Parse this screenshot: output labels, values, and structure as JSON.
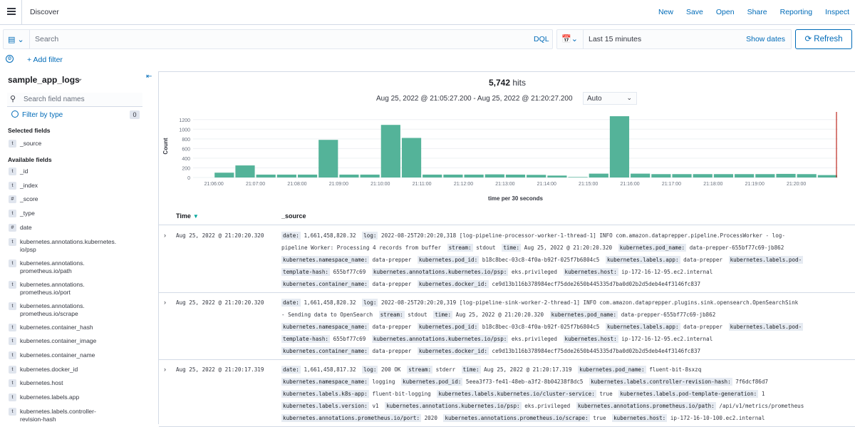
{
  "topbar": {
    "title": "Discover",
    "links": [
      "New",
      "Save",
      "Open",
      "Share",
      "Reporting",
      "Inspect"
    ]
  },
  "querybar": {
    "search_placeholder": "Search",
    "language": "DQL",
    "time_range": "Last 15 minutes",
    "show_dates": "Show dates",
    "refresh": "Refresh"
  },
  "filterbar": {
    "add_filter": "+ Add filter"
  },
  "sidebar": {
    "index_pattern": "sample_app_logs",
    "search_placeholder": "Search field names",
    "filter_by_type": "Filter by type",
    "filter_count": "0",
    "selected_title": "Selected fields",
    "selected_fields": [
      {
        "type": "t",
        "name": "_source"
      }
    ],
    "available_title": "Available fields",
    "available_fields": [
      {
        "type": "t",
        "name": "_id"
      },
      {
        "type": "t",
        "name": "_index"
      },
      {
        "type": "#",
        "name": "_score"
      },
      {
        "type": "t",
        "name": "_type"
      },
      {
        "type": "#",
        "name": "date"
      },
      {
        "type": "t",
        "name": "kubernetes.annotations.kubernetes.",
        "name2": "io/psp"
      },
      {
        "type": "t",
        "name": "kubernetes.annotations.",
        "name2": "prometheus.io/path"
      },
      {
        "type": "t",
        "name": "kubernetes.annotations.",
        "name2": "prometheus.io/port"
      },
      {
        "type": "t",
        "name": "kubernetes.annotations.",
        "name2": "prometheus.io/scrape"
      },
      {
        "type": "t",
        "name": "kubernetes.container_hash"
      },
      {
        "type": "t",
        "name": "kubernetes.container_image"
      },
      {
        "type": "t",
        "name": "kubernetes.container_name"
      },
      {
        "type": "t",
        "name": "kubernetes.docker_id"
      },
      {
        "type": "t",
        "name": "kubernetes.host"
      },
      {
        "type": "t",
        "name": "kubernetes.labels.app"
      },
      {
        "type": "t",
        "name": "kubernetes.labels.controller-",
        "name2": "revision-hash"
      }
    ]
  },
  "main": {
    "hits_count": "5,742",
    "hits_label": "hits",
    "range_text": "Aug 25, 2022 @ 21:05:27.200 - Aug 25, 2022 @ 21:20:27.200",
    "interval": "Auto",
    "time_header": "Time",
    "source_header": "_source"
  },
  "chart_data": {
    "type": "bar",
    "xlabel": "time per 30 seconds",
    "ylabel": "Count",
    "ylim": [
      0,
      1300
    ],
    "yticks": [
      0,
      200,
      400,
      600,
      800,
      1000,
      1200
    ],
    "xticks": [
      "21:06:00",
      "21:07:00",
      "21:08:00",
      "21:09:00",
      "21:10:00",
      "21:11:00",
      "21:12:00",
      "21:13:00",
      "21:14:00",
      "21:15:00",
      "21:16:00",
      "21:17:00",
      "21:18:00",
      "21:19:00",
      "21:20:00"
    ],
    "bar_start_index": 1,
    "values": [
      100,
      250,
      60,
      60,
      60,
      780,
      60,
      60,
      1090,
      820,
      60,
      60,
      60,
      65,
      60,
      55,
      40,
      10,
      80,
      1270,
      80,
      70,
      70,
      70,
      70,
      70,
      70,
      75,
      70,
      50
    ],
    "bar_color": "#54b399",
    "now_marker_color": "#bd271e",
    "grid": true
  },
  "documents": [
    {
      "time": "Aug 25, 2022 @ 21:20:20.320",
      "lines": [
        [
          [
            "date:",
            "1,661,458,820.32"
          ],
          [
            "log:",
            "2022-08-25T20:20:20,318 [log-pipeline-processor-worker-1-thread-1] INFO com.amazon.dataprepper.pipeline.ProcessWorker - log-"
          ]
        ],
        [
          [
            "",
            "pipeline Worker: Processing 4 records from buffer"
          ],
          [
            "stream:",
            "stdout"
          ],
          [
            "time:",
            "Aug 25, 2022 @ 21:20:20.320"
          ],
          [
            "kubernetes.pod_name:",
            "data-prepper-655bf77c69-jb862"
          ]
        ],
        [
          [
            "kubernetes.namespace_name:",
            "data-prepper"
          ],
          [
            "kubernetes.pod_id:",
            "b18c8bec-03c8-4f0a-b92f-025f7b6804c5"
          ],
          [
            "kubernetes.labels.app:",
            "data-prepper"
          ],
          [
            "kubernetes.labels.pod-",
            ""
          ]
        ],
        [
          [
            "template-hash:",
            "655bf77c69"
          ],
          [
            "kubernetes.annotations.kubernetes.io/psp:",
            "eks.privileged"
          ],
          [
            "kubernetes.host:",
            "ip-172-16-12-95.ec2.internal"
          ]
        ],
        [
          [
            "kubernetes.container_name:",
            "data-prepper"
          ],
          [
            "kubernetes.docker_id:",
            "ce9d13b116b378984ecf75dde2650b445335d7ba0d02b2d5deb4e4f3146fc837"
          ]
        ]
      ]
    },
    {
      "time": "Aug 25, 2022 @ 21:20:20.320",
      "lines": [
        [
          [
            "date:",
            "1,661,458,820.32"
          ],
          [
            "log:",
            "2022-08-25T20:20:20,319 [log-pipeline-sink-worker-2-thread-1] INFO com.amazon.dataprepper.plugins.sink.opensearch.OpenSearchSink"
          ]
        ],
        [
          [
            "",
            "- Sending data to OpenSearch"
          ],
          [
            "stream:",
            "stdout"
          ],
          [
            "time:",
            "Aug 25, 2022 @ 21:20:20.320"
          ],
          [
            "kubernetes.pod_name:",
            "data-prepper-655bf77c69-jb862"
          ]
        ],
        [
          [
            "kubernetes.namespace_name:",
            "data-prepper"
          ],
          [
            "kubernetes.pod_id:",
            "b18c8bec-03c8-4f0a-b92f-025f7b6804c5"
          ],
          [
            "kubernetes.labels.app:",
            "data-prepper"
          ],
          [
            "kubernetes.labels.pod-",
            ""
          ]
        ],
        [
          [
            "template-hash:",
            "655bf77c69"
          ],
          [
            "kubernetes.annotations.kubernetes.io/psp:",
            "eks.privileged"
          ],
          [
            "kubernetes.host:",
            "ip-172-16-12-95.ec2.internal"
          ]
        ],
        [
          [
            "kubernetes.container_name:",
            "data-prepper"
          ],
          [
            "kubernetes.docker_id:",
            "ce9d13b116b378984ecf75dde2650b445335d7ba0d02b2d5deb4e4f3146fc837"
          ]
        ]
      ]
    },
    {
      "time": "Aug 25, 2022 @ 21:20:17.319",
      "lines": [
        [
          [
            "date:",
            "1,661,458,817.32"
          ],
          [
            "log:",
            "200 OK"
          ],
          [
            "stream:",
            "stderr"
          ],
          [
            "time:",
            "Aug 25, 2022 @ 21:20:17.319"
          ],
          [
            "kubernetes.pod_name:",
            "fluent-bit-8sxzq"
          ]
        ],
        [
          [
            "kubernetes.namespace_name:",
            "logging"
          ],
          [
            "kubernetes.pod_id:",
            "5eea3f73-fe41-48eb-a3f2-8b04238f8dc5"
          ],
          [
            "kubernetes.labels.controller-revision-hash:",
            "7f6dcf86d7"
          ]
        ],
        [
          [
            "kubernetes.labels.k8s-app:",
            "fluent-bit-logging"
          ],
          [
            "kubernetes.labels.kubernetes.io/cluster-service:",
            "true"
          ],
          [
            "kubernetes.labels.pod-template-generation:",
            "1"
          ]
        ],
        [
          [
            "kubernetes.labels.version:",
            "v1"
          ],
          [
            "kubernetes.annotations.kubernetes.io/psp:",
            "eks.privileged"
          ],
          [
            "kubernetes.annotations.prometheus.io/path:",
            "/api/v1/metrics/prometheus"
          ]
        ],
        [
          [
            "kubernetes.annotations.prometheus.io/port:",
            "2020"
          ],
          [
            "kubernetes.annotations.prometheus.io/scrape:",
            "true"
          ],
          [
            "kubernetes.host:",
            "ip-172-16-10-100.ec2.internal"
          ]
        ]
      ]
    }
  ]
}
